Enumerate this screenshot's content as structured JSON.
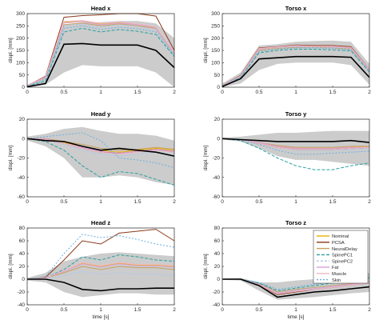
{
  "figure": {
    "x_axis_label": "time [s]",
    "y_axis_label": "displ. [mm]",
    "legend": {
      "entries": [
        "Nominal",
        "PCSA",
        "NeuralDelay",
        "SpinePC1",
        "SpinePC2",
        "Fat",
        "Muscle",
        "Skin"
      ],
      "colors": [
        "#e8b400",
        "#8b3a1a",
        "#c8a060",
        "#2aa0a0",
        "#aec8ec",
        "#d9a0d9",
        "#f2b8c6",
        "#6ab0e0"
      ],
      "placement": "inside lower right of the Torso z panel"
    },
    "colors": {
      "envelope": "#cccccc",
      "mean_line": "#000000"
    }
  },
  "chart_data": [
    {
      "type": "line",
      "title": "Head x",
      "x": [
        0,
        0.25,
        0.5,
        0.75,
        1.0,
        1.25,
        1.5,
        1.75,
        2.0
      ],
      "xlim": [
        0,
        2
      ],
      "ylim": [
        0,
        300
      ],
      "xticks": [
        "0",
        "0.5",
        "1",
        "1.5",
        "2"
      ],
      "yticks": [
        "0",
        "50",
        "100",
        "150",
        "200",
        "250",
        "300"
      ],
      "envelope": {
        "upper": [
          10,
          40,
          255,
          265,
          265,
          270,
          270,
          260,
          200
        ],
        "lower": [
          0,
          10,
          60,
          90,
          85,
          85,
          85,
          60,
          -5
        ]
      },
      "series": [
        {
          "name": "mean",
          "values": [
            2,
            15,
            175,
            178,
            172,
            172,
            172,
            150,
            80
          ]
        },
        {
          "name": "Nominal",
          "values": [
            5,
            40,
            265,
            270,
            258,
            265,
            255,
            245,
            140
          ]
        },
        {
          "name": "PCSA",
          "values": [
            5,
            45,
            285,
            292,
            295,
            300,
            305,
            290,
            150
          ]
        },
        {
          "name": "NeuralDelay",
          "values": [
            4,
            38,
            255,
            262,
            250,
            258,
            250,
            240,
            135
          ]
        },
        {
          "name": "SpinePC1",
          "values": [
            3,
            25,
            225,
            240,
            225,
            235,
            228,
            215,
            125
          ]
        },
        {
          "name": "SpinePC2",
          "values": [
            4,
            35,
            250,
            258,
            245,
            255,
            248,
            232,
            130
          ]
        },
        {
          "name": "Fat",
          "values": [
            5,
            40,
            262,
            268,
            255,
            262,
            255,
            242,
            138
          ]
        },
        {
          "name": "Muscle",
          "values": [
            5,
            42,
            268,
            272,
            260,
            266,
            258,
            246,
            142
          ]
        },
        {
          "name": "Skin",
          "values": [
            4,
            32,
            240,
            250,
            235,
            245,
            238,
            225,
            128
          ]
        }
      ]
    },
    {
      "type": "line",
      "title": "Torso x",
      "x": [
        0,
        0.25,
        0.5,
        0.75,
        1.0,
        1.25,
        1.5,
        1.75,
        2.0
      ],
      "xlim": [
        0,
        2
      ],
      "ylim": [
        0,
        300
      ],
      "xticks": [
        "0",
        "0.5",
        "1",
        "1.5",
        "2"
      ],
      "yticks": [
        "0",
        "50",
        "100",
        "150",
        "200",
        "250",
        "300"
      ],
      "envelope": {
        "upper": [
          15,
          60,
          170,
          175,
          185,
          188,
          190,
          185,
          95
        ],
        "lower": [
          0,
          15,
          70,
          95,
          100,
          100,
          100,
          90,
          10
        ]
      },
      "series": [
        {
          "name": "mean",
          "values": [
            3,
            35,
            115,
            120,
            125,
            125,
            125,
            122,
            40
          ]
        },
        {
          "name": "Nominal",
          "values": [
            5,
            45,
            155,
            162,
            168,
            165,
            165,
            160,
            70
          ]
        },
        {
          "name": "PCSA",
          "values": [
            6,
            48,
            160,
            165,
            172,
            170,
            170,
            165,
            72
          ]
        },
        {
          "name": "NeuralDelay",
          "values": [
            5,
            45,
            150,
            158,
            162,
            162,
            160,
            156,
            68
          ]
        },
        {
          "name": "SpinePC1",
          "values": [
            4,
            40,
            140,
            150,
            155,
            155,
            152,
            148,
            62
          ]
        },
        {
          "name": "SpinePC2",
          "values": [
            5,
            44,
            152,
            160,
            165,
            162,
            162,
            158,
            68
          ]
        },
        {
          "name": "Fat",
          "values": [
            5,
            45,
            156,
            163,
            168,
            166,
            165,
            160,
            70
          ]
        },
        {
          "name": "Muscle",
          "values": [
            5,
            46,
            158,
            164,
            170,
            167,
            167,
            162,
            71
          ]
        },
        {
          "name": "Skin",
          "values": [
            4,
            42,
            145,
            155,
            160,
            160,
            158,
            152,
            65
          ]
        }
      ]
    },
    {
      "type": "line",
      "title": "Head y",
      "x": [
        0,
        0.25,
        0.5,
        0.75,
        1.0,
        1.25,
        1.5,
        1.75,
        2.0
      ],
      "xlim": [
        0,
        2
      ],
      "ylim": [
        -60,
        20
      ],
      "xticks": [
        "0",
        "0.5",
        "1",
        "1.5",
        "2"
      ],
      "yticks": [
        "-60",
        "-40",
        "-20",
        "0",
        "20"
      ],
      "envelope": {
        "upper": [
          2,
          5,
          10,
          12,
          8,
          5,
          5,
          3,
          -2
        ],
        "lower": [
          -2,
          -8,
          -20,
          -40,
          -40,
          -38,
          -40,
          -45,
          -48
        ]
      },
      "series": [
        {
          "name": "mean",
          "values": [
            0,
            -2,
            -3,
            -8,
            -12,
            -10,
            -12,
            -14,
            -18
          ]
        },
        {
          "name": "Nominal",
          "values": [
            0,
            0,
            -4,
            -8,
            -12,
            -14,
            -12,
            -10,
            -12
          ]
        },
        {
          "name": "PCSA",
          "values": [
            0,
            -1,
            -5,
            -10,
            -14,
            -15,
            -13,
            -11,
            -14
          ]
        },
        {
          "name": "NeuralDelay",
          "values": [
            0,
            0,
            -3,
            -6,
            -10,
            -12,
            -11,
            -9,
            -11
          ]
        },
        {
          "name": "SpinePC1",
          "values": [
            0,
            -3,
            -12,
            -28,
            -40,
            -34,
            -36,
            -42,
            -48
          ]
        },
        {
          "name": "SpinePC2",
          "values": [
            0,
            -1,
            -6,
            -12,
            -16,
            -18,
            -16,
            -14,
            -16
          ]
        },
        {
          "name": "Fat",
          "values": [
            0,
            0,
            -5,
            -9,
            -13,
            -15,
            -13,
            -11,
            -13
          ]
        },
        {
          "name": "Muscle",
          "values": [
            0,
            -1,
            -5,
            -10,
            -14,
            -16,
            -14,
            -12,
            -14
          ]
        },
        {
          "name": "Skin",
          "values": [
            0,
            2,
            4,
            6,
            -2,
            -20,
            -22,
            -25,
            -30
          ]
        }
      ]
    },
    {
      "type": "line",
      "title": "Torso y",
      "x": [
        0,
        0.25,
        0.5,
        0.75,
        1.0,
        1.25,
        1.5,
        1.75,
        2.0
      ],
      "xlim": [
        0,
        2
      ],
      "ylim": [
        -60,
        20
      ],
      "xticks": [
        "0",
        "0.5",
        "1",
        "1.5",
        "2"
      ],
      "yticks": [
        "-60",
        "-40",
        "-20",
        "0",
        "20"
      ],
      "envelope": {
        "upper": [
          1,
          2,
          4,
          6,
          6,
          7,
          8,
          8,
          8
        ],
        "lower": [
          -1,
          -3,
          -10,
          -18,
          -22,
          -22,
          -24,
          -26,
          -28
        ]
      },
      "series": [
        {
          "name": "mean",
          "values": [
            0,
            -1,
            -2,
            -3,
            -3,
            -3,
            -3,
            -2,
            -4
          ]
        },
        {
          "name": "Nominal",
          "values": [
            0,
            -1,
            -4,
            -8,
            -10,
            -10,
            -10,
            -9,
            -8
          ]
        },
        {
          "name": "PCSA",
          "values": [
            0,
            -1,
            -5,
            -9,
            -11,
            -11,
            -11,
            -10,
            -9
          ]
        },
        {
          "name": "NeuralDelay",
          "values": [
            0,
            -1,
            -4,
            -7,
            -9,
            -9,
            -9,
            -8,
            -8
          ]
        },
        {
          "name": "SpinePC1",
          "values": [
            0,
            -2,
            -10,
            -20,
            -28,
            -32,
            -32,
            -28,
            -25
          ]
        },
        {
          "name": "SpinePC2",
          "values": [
            0,
            -1,
            -5,
            -9,
            -12,
            -12,
            -12,
            -11,
            -10
          ]
        },
        {
          "name": "Fat",
          "values": [
            0,
            -1,
            -4,
            -8,
            -10,
            -10,
            -10,
            -9,
            -9
          ]
        },
        {
          "name": "Muscle",
          "values": [
            0,
            -1,
            -5,
            -9,
            -11,
            -11,
            -11,
            -10,
            -9
          ]
        },
        {
          "name": "Skin",
          "values": [
            0,
            -1,
            -6,
            -12,
            -16,
            -16,
            -15,
            -14,
            -13
          ]
        }
      ]
    },
    {
      "type": "line",
      "title": "Head z",
      "x": [
        0,
        0.25,
        0.5,
        0.75,
        1.0,
        1.25,
        1.5,
        1.75,
        2.0
      ],
      "xlim": [
        0,
        2
      ],
      "ylim": [
        -40,
        80
      ],
      "xticks": [
        "0",
        "0.5",
        "1",
        "1.5",
        "2"
      ],
      "yticks": [
        "-40",
        "-20",
        "0",
        "20",
        "40",
        "60",
        "80"
      ],
      "envelope": {
        "upper": [
          2,
          10,
          28,
          35,
          40,
          42,
          40,
          38,
          36
        ],
        "lower": [
          -2,
          -5,
          -20,
          -28,
          -25,
          -22,
          -22,
          -24,
          -24
        ]
      },
      "series": [
        {
          "name": "mean",
          "values": [
            0,
            0,
            -5,
            -16,
            -18,
            -15,
            -15,
            -14,
            -14
          ]
        },
        {
          "name": "Nominal",
          "values": [
            0,
            2,
            12,
            25,
            20,
            25,
            22,
            22,
            20
          ]
        },
        {
          "name": "PCSA",
          "values": [
            0,
            3,
            30,
            60,
            55,
            72,
            75,
            78,
            60
          ]
        },
        {
          "name": "NeuralDelay",
          "values": [
            0,
            2,
            10,
            20,
            15,
            20,
            18,
            18,
            15
          ]
        },
        {
          "name": "SpinePC1",
          "values": [
            0,
            2,
            15,
            35,
            30,
            38,
            35,
            30,
            28
          ]
        },
        {
          "name": "SpinePC2",
          "values": [
            0,
            1,
            6,
            12,
            8,
            10,
            8,
            8,
            6
          ]
        },
        {
          "name": "Fat",
          "values": [
            0,
            2,
            12,
            24,
            19,
            24,
            21,
            21,
            19
          ]
        },
        {
          "name": "Muscle",
          "values": [
            0,
            2,
            13,
            26,
            21,
            26,
            23,
            23,
            21
          ]
        },
        {
          "name": "Skin",
          "values": [
            0,
            4,
            40,
            70,
            65,
            68,
            62,
            55,
            50
          ]
        }
      ]
    },
    {
      "type": "line",
      "title": "Torso z",
      "x": [
        0,
        0.25,
        0.5,
        0.75,
        1.0,
        1.25,
        1.5,
        1.75,
        2.0
      ],
      "xlim": [
        0,
        2
      ],
      "ylim": [
        -40,
        80
      ],
      "xticks": [
        "0",
        "0.5",
        "1",
        "1.5",
        "2"
      ],
      "yticks": [
        "-40",
        "-20",
        "0",
        "20",
        "40",
        "60",
        "80"
      ],
      "envelope": {
        "upper": [
          1,
          2,
          -5,
          -5,
          -2,
          0,
          2,
          5,
          10
        ],
        "lower": [
          -1,
          -2,
          -18,
          -32,
          -30,
          -28,
          -25,
          -22,
          -20
        ]
      },
      "series": [
        {
          "name": "mean",
          "values": [
            0,
            0,
            -10,
            -28,
            -24,
            -20,
            -18,
            -15,
            -12
          ]
        },
        {
          "name": "Nominal",
          "values": [
            0,
            0,
            -8,
            -22,
            -18,
            -15,
            -12,
            -8,
            -5
          ]
        },
        {
          "name": "PCSA",
          "values": [
            0,
            0,
            -9,
            -24,
            -20,
            -16,
            -13,
            -9,
            -6
          ]
        },
        {
          "name": "NeuralDelay",
          "values": [
            0,
            0,
            -7,
            -20,
            -16,
            -13,
            -10,
            -7,
            -4
          ]
        },
        {
          "name": "SpinePC1",
          "values": [
            0,
            0,
            -6,
            -18,
            -14,
            -10,
            -6,
            -2,
            2
          ]
        },
        {
          "name": "SpinePC2",
          "values": [
            0,
            0,
            -8,
            -21,
            -17,
            -14,
            -11,
            -8,
            -5
          ]
        },
        {
          "name": "Fat",
          "values": [
            0,
            0,
            -8,
            -22,
            -18,
            -15,
            -12,
            -8,
            -5
          ]
        },
        {
          "name": "Muscle",
          "values": [
            0,
            0,
            -9,
            -23,
            -19,
            -16,
            -13,
            -9,
            -6
          ]
        },
        {
          "name": "Skin",
          "values": [
            0,
            0,
            -5,
            -16,
            -12,
            -8,
            -4,
            0,
            3
          ]
        }
      ]
    }
  ]
}
